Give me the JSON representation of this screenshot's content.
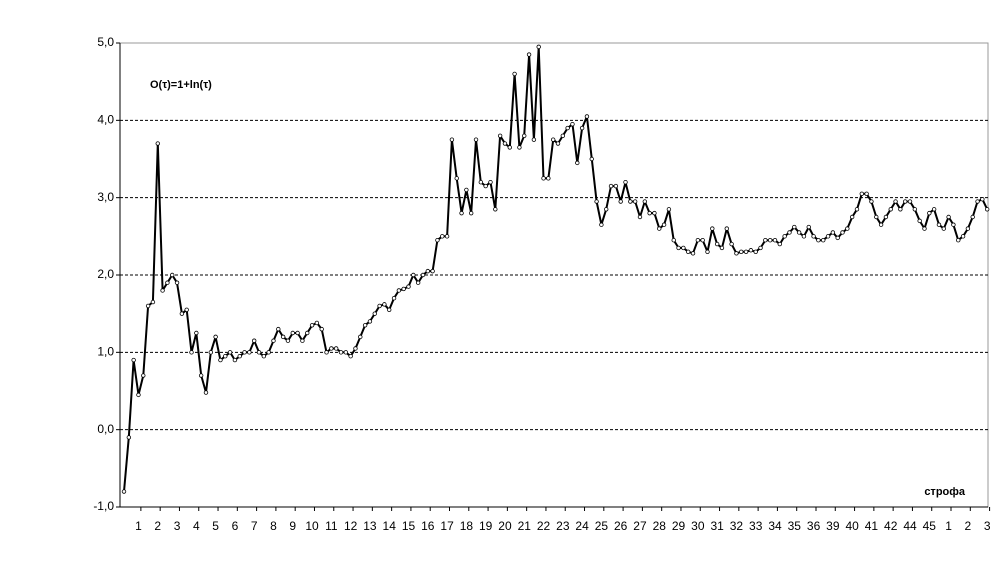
{
  "chart_data": {
    "type": "line",
    "annotation": "O(τ)=1+ln(τ)",
    "x_label": "строфа",
    "categories": [
      null,
      null,
      null,
      "1",
      null,
      null,
      null,
      "2",
      null,
      null,
      null,
      "3",
      null,
      null,
      null,
      "4",
      null,
      null,
      null,
      "5",
      null,
      null,
      null,
      "6",
      null,
      null,
      null,
      "7",
      null,
      null,
      null,
      "8",
      null,
      null,
      null,
      "9",
      null,
      null,
      null,
      "10",
      null,
      null,
      null,
      "11",
      null,
      null,
      null,
      "12",
      null,
      null,
      null,
      "13",
      null,
      null,
      null,
      "14",
      null,
      null,
      null,
      "15",
      null,
      null,
      null,
      "16",
      null,
      null,
      null,
      "17",
      null,
      null,
      null,
      "18",
      null,
      null,
      null,
      "19",
      null,
      null,
      null,
      "20",
      null,
      null,
      null,
      "21",
      null,
      null,
      null,
      "22",
      null,
      null,
      null,
      "23",
      null,
      null,
      null,
      "24",
      null,
      null,
      null,
      "25",
      null,
      null,
      null,
      "26",
      null,
      null,
      null,
      "27",
      null,
      null,
      null,
      "28",
      null,
      null,
      null,
      "29",
      null,
      null,
      null,
      "30",
      null,
      null,
      null,
      "31",
      null,
      null,
      null,
      "32",
      null,
      null,
      null,
      "33",
      null,
      null,
      null,
      "34",
      null,
      null,
      null,
      "35",
      null,
      null,
      null,
      "36",
      null,
      null,
      null,
      "39",
      null,
      null,
      null,
      "40",
      null,
      null,
      null,
      "41",
      null,
      null,
      null,
      "42",
      null,
      null,
      null,
      "44",
      null,
      null,
      null,
      "45",
      null,
      null,
      null,
      "1",
      null,
      null,
      null,
      "2",
      null,
      null,
      null,
      "3"
    ],
    "series": [
      {
        "color": "#000000",
        "values": [
          -0.8,
          -0.1,
          0.9,
          0.45,
          0.7,
          1.6,
          1.65,
          3.7,
          1.8,
          1.9,
          2.0,
          1.9,
          1.5,
          1.55,
          1.0,
          1.25,
          0.7,
          0.48,
          1.0,
          1.2,
          0.9,
          0.95,
          1.0,
          0.9,
          0.95,
          1.0,
          1.0,
          1.15,
          1.0,
          0.95,
          1.0,
          1.15,
          1.3,
          1.2,
          1.15,
          1.25,
          1.25,
          1.15,
          1.25,
          1.35,
          1.38,
          1.3,
          1.0,
          1.05,
          1.05,
          1.0,
          1.0,
          0.95,
          1.05,
          1.2,
          1.35,
          1.4,
          1.5,
          1.6,
          1.62,
          1.55,
          1.7,
          1.8,
          1.82,
          1.85,
          2.0,
          1.9,
          2.0,
          2.05,
          2.05,
          2.45,
          2.5,
          2.5,
          3.75,
          3.25,
          2.8,
          3.1,
          2.8,
          3.75,
          3.2,
          3.15,
          3.2,
          2.85,
          3.8,
          3.7,
          3.65,
          4.6,
          3.65,
          3.8,
          4.85,
          3.75,
          4.95,
          3.25,
          3.25,
          3.75,
          3.7,
          3.8,
          3.9,
          3.95,
          3.45,
          3.9,
          4.05,
          3.5,
          2.95,
          2.65,
          2.85,
          3.15,
          3.15,
          2.95,
          3.2,
          2.95,
          2.95,
          2.75,
          2.95,
          2.8,
          2.8,
          2.6,
          2.65,
          2.85,
          2.45,
          2.35,
          2.35,
          2.3,
          2.28,
          2.45,
          2.45,
          2.3,
          2.6,
          2.4,
          2.35,
          2.6,
          2.4,
          2.28,
          2.3,
          2.3,
          2.32,
          2.3,
          2.35,
          2.45,
          2.45,
          2.45,
          2.4,
          2.5,
          2.55,
          2.62,
          2.55,
          2.5,
          2.62,
          2.5,
          2.45,
          2.45,
          2.5,
          2.55,
          2.48,
          2.55,
          2.6,
          2.75,
          2.85,
          3.05,
          3.05,
          2.95,
          2.75,
          2.65,
          2.75,
          2.85,
          2.95,
          2.85,
          2.95,
          2.95,
          2.85,
          2.7,
          2.6,
          2.8,
          2.85,
          2.65,
          2.6,
          2.75,
          2.65,
          2.45,
          2.5,
          2.6,
          2.75,
          2.95,
          2.98,
          2.85
        ]
      }
    ],
    "ylim": [
      -1,
      5
    ],
    "yticks": [
      {
        "value": -1,
        "label": "-1,0"
      },
      {
        "value": 0,
        "label": "0,0"
      },
      {
        "value": 1,
        "label": "1,0"
      },
      {
        "value": 2,
        "label": "2,0"
      },
      {
        "value": 3,
        "label": "3,0"
      },
      {
        "value": 4,
        "label": "4,0"
      },
      {
        "value": 5,
        "label": "5,0"
      }
    ],
    "grid": true
  }
}
